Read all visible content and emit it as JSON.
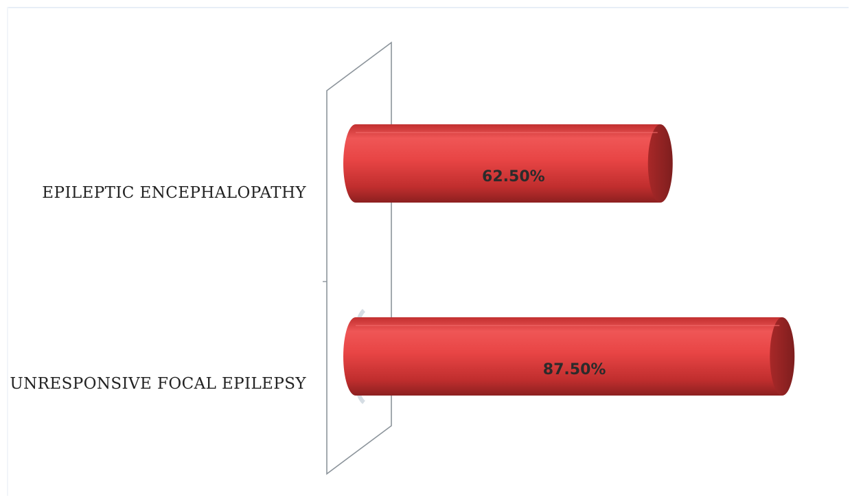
{
  "chart_data": {
    "type": "bar",
    "orientation": "horizontal",
    "style": "3d-cylinder",
    "categories": [
      "EPILEPTIC ENCEPHALOPATHY",
      "UNRESPONSIVE FOCAL EPILEPSY"
    ],
    "values": [
      62.5,
      87.5
    ],
    "data_labels": [
      "62.50%",
      "87.50%"
    ],
    "title": "",
    "xlabel": "",
    "ylabel": "",
    "xlim": [
      0,
      100
    ],
    "grid": false,
    "legend": "none",
    "colors": {
      "bar_light": "#f05a5a",
      "bar_mid": "#e33b3b",
      "bar_dark": "#a02323",
      "bar_cap": "#8a2323",
      "axis_wall": "#8c949b",
      "axis_shadow": "#b9c6d2"
    }
  }
}
